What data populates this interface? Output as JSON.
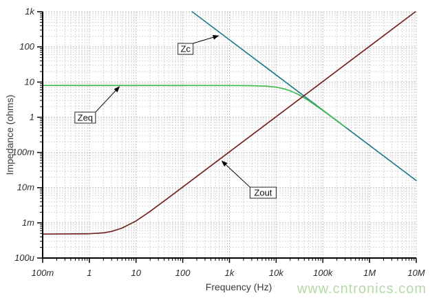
{
  "watermark": {
    "text": "www.cntronics.com",
    "color": "#b5d9a8"
  },
  "chart_data": {
    "type": "line",
    "title": "",
    "xlabel": "Frequency (Hz)",
    "ylabel": "Impedance (ohms)",
    "x_scale": "log",
    "y_scale": "log",
    "xlim": [
      0.1,
      10000000
    ],
    "ylim": [
      0.0001,
      1000
    ],
    "grid": "log-minor-dashed",
    "legend": "none",
    "x_ticks": [
      {
        "value": 0.1,
        "label": "100m"
      },
      {
        "value": 1,
        "label": "1"
      },
      {
        "value": 10,
        "label": "10"
      },
      {
        "value": 100,
        "label": "100"
      },
      {
        "value": 1000,
        "label": "1k"
      },
      {
        "value": 10000,
        "label": "10k"
      },
      {
        "value": 100000,
        "label": "100k"
      },
      {
        "value": 1000000,
        "label": "1M"
      },
      {
        "value": 10000000,
        "label": "10M"
      }
    ],
    "y_ticks": [
      {
        "value": 0.0001,
        "label": "100u"
      },
      {
        "value": 0.001,
        "label": "1m"
      },
      {
        "value": 0.01,
        "label": "10m"
      },
      {
        "value": 0.1,
        "label": "100m"
      },
      {
        "value": 1,
        "label": "1"
      },
      {
        "value": 10,
        "label": "10"
      },
      {
        "value": 100,
        "label": "100"
      },
      {
        "value": 1000,
        "label": "1k"
      }
    ],
    "series": [
      {
        "name": "Zc",
        "color": "#1f7d88",
        "points": [
          [
            159.2,
            1000
          ],
          [
            10000000,
            0.0159
          ]
        ]
      },
      {
        "name": "Zeq",
        "color": "#3dbb4d",
        "points": [
          [
            0.1,
            8
          ],
          [
            1000,
            7.99
          ],
          [
            3000,
            7.91
          ],
          [
            6000,
            7.66
          ],
          [
            10000,
            7.15
          ],
          [
            15000,
            6.39
          ],
          [
            20000,
            5.64
          ],
          [
            30000,
            4.42
          ],
          [
            50000,
            2.96
          ],
          [
            100000,
            1.56
          ],
          [
            200000,
            0.79
          ],
          [
            300000,
            0.53
          ]
        ]
      },
      {
        "name": "Zout",
        "color": "#74221f",
        "points": [
          [
            0.1,
            0.00048
          ],
          [
            1,
            0.00049
          ],
          [
            2,
            0.00052
          ],
          [
            3,
            0.00057
          ],
          [
            5,
            0.00071
          ],
          [
            10,
            0.00113
          ],
          [
            20,
            0.00212
          ],
          [
            50,
            0.0052
          ],
          [
            100,
            0.0104
          ],
          [
            1000,
            0.104
          ],
          [
            10000,
            1.04
          ],
          [
            100000,
            10.4
          ],
          [
            1000000,
            103.7
          ],
          [
            9600000,
            1000
          ]
        ]
      }
    ],
    "annotations": [
      {
        "label": "Zc",
        "box_at": [
          79,
          126
        ],
        "tip_at": [
          582,
          207
        ]
      },
      {
        "label": "Zeq",
        "box_at": [
          0.49,
          1.4
        ],
        "tip_at": [
          4.4,
          7.4
        ]
      },
      {
        "label": "Zout",
        "box_at": [
          2760,
          0.0103
        ],
        "tip_at": [
          689,
          0.057
        ]
      }
    ]
  }
}
